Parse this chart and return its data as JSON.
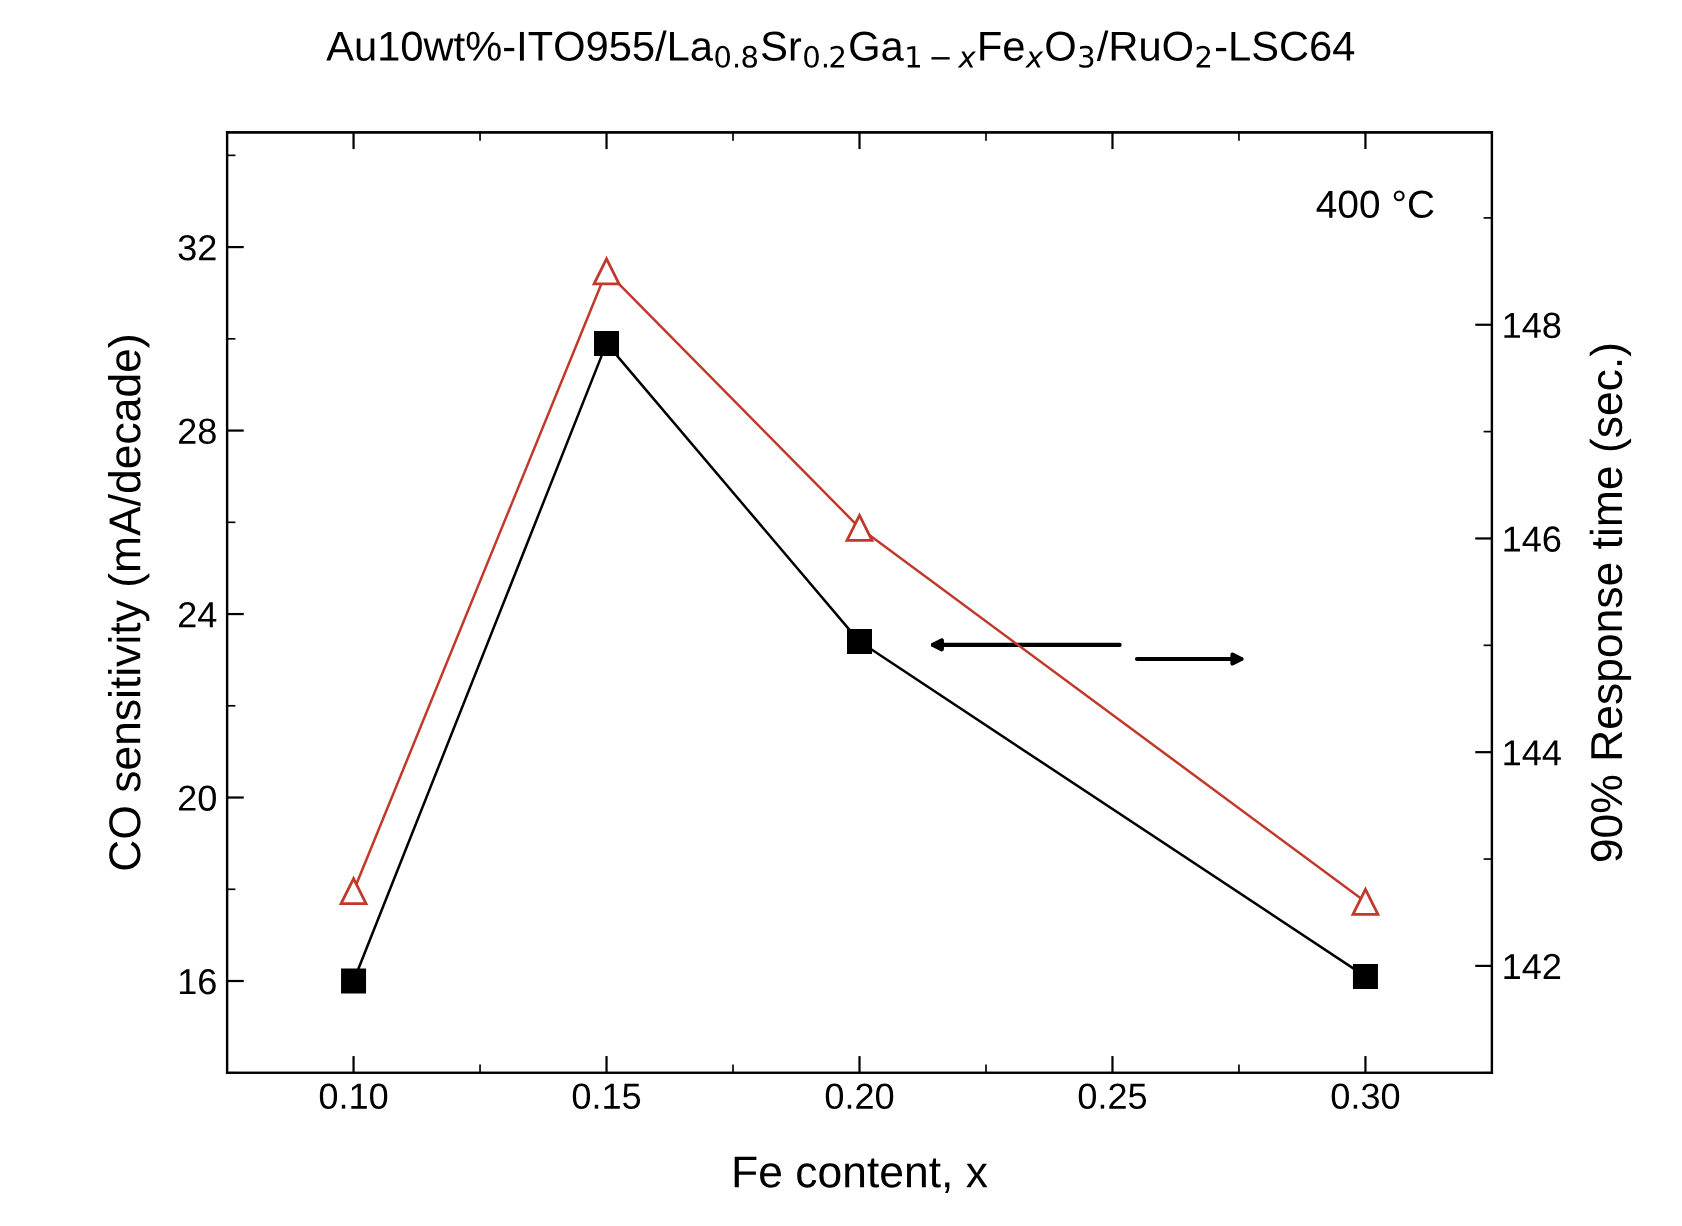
{
  "chart_data": {
    "type": "line",
    "title": "Au10wt%-ITO955/La$_{0.8}$Sr$_{0.2}$Ga$_{1−x}$Fe$_{x}$O$_{3}$/RuO$_{2}$-LSC64",
    "xlabel": "Fe content, x",
    "ylabel": "CO sensitivity (mA/decade)",
    "y2label": "90% Response time (sec.)",
    "annotations": [
      "400 °C"
    ],
    "x": [
      0.1,
      0.15,
      0.2,
      0.3
    ],
    "series": [
      {
        "color": "#000000",
        "marker": "square",
        "values": [
          16.0,
          29.9,
          23.4,
          16.1
        ]
      },
      {
        "color": "#c0392b",
        "marker": "triangle",
        "axis": "y2",
        "values": [
          142.7,
          148.5,
          146.1,
          142.6
        ]
      }
    ],
    "xlim": [
      0.075,
      0.325
    ],
    "xticks": [
      {
        "value": 0.1,
        "label": "0.10"
      },
      {
        "value": 0.15,
        "label": "0.15"
      },
      {
        "value": 0.2,
        "label": "0.20"
      },
      {
        "value": 0.25,
        "label": "0.25"
      },
      {
        "value": 0.3,
        "label": "0.30"
      }
    ],
    "ylim": [
      14,
      34.5
    ],
    "yticks": [
      16,
      20,
      24,
      28,
      32
    ],
    "y2lim": [
      141,
      149.8
    ],
    "y2ticks": [
      142,
      144,
      146,
      148
    ],
    "grid": false,
    "legend": false,
    "line_style": "solid"
  }
}
